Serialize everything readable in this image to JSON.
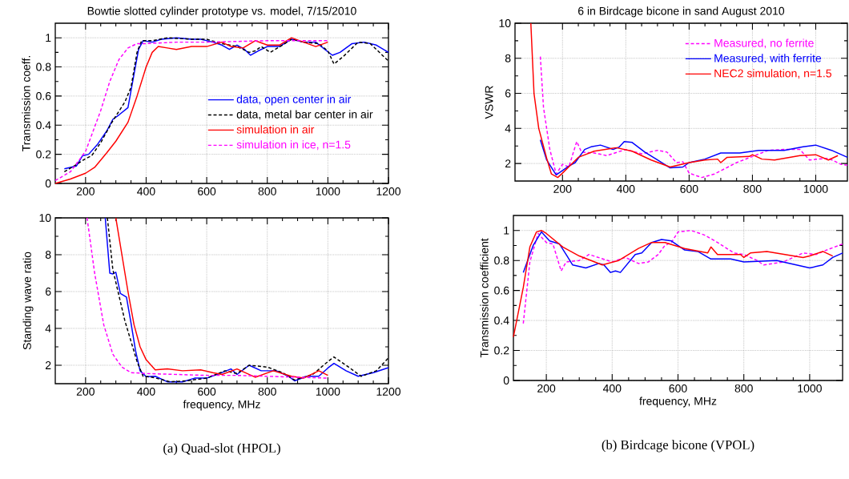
{
  "chart_data": [
    {
      "type": "line",
      "title": "Bowtie slotted cylinder prototype vs. model, 7/15/2010",
      "ylabel": "Transmission coeff.",
      "xlim": [
        100,
        1200
      ],
      "ylim": [
        0,
        1.1
      ],
      "xticks": [
        200,
        400,
        600,
        800,
        1000,
        1200
      ],
      "yticks": [
        0,
        0.2,
        0.4,
        0.6,
        0.8,
        1
      ],
      "grid": true,
      "legend": "right",
      "series": [
        {
          "name": "data, open center in air",
          "color": "#0000ff",
          "line_style": "solid",
          "x": [
            130,
            170,
            190,
            210,
            240,
            270,
            290,
            310,
            340,
            360,
            375,
            390,
            420,
            450,
            500,
            550,
            580,
            620,
            650,
            675,
            700,
            725,
            745,
            770,
            800,
            840,
            880,
            920,
            960,
            990,
            1015,
            1040,
            1080,
            1120,
            1160,
            1200
          ],
          "values": [
            0.1,
            0.12,
            0.19,
            0.2,
            0.27,
            0.36,
            0.44,
            0.47,
            0.52,
            0.75,
            0.92,
            0.98,
            0.97,
            0.99,
            1.0,
            0.99,
            0.99,
            0.97,
            0.95,
            0.92,
            0.95,
            0.92,
            0.88,
            0.91,
            0.94,
            0.94,
            0.99,
            0.97,
            0.97,
            0.92,
            0.88,
            0.9,
            0.96,
            0.97,
            0.95,
            0.9
          ]
        },
        {
          "name": "data, metal bar center in air",
          "color": "#000000",
          "line_style": "dashed",
          "x": [
            130,
            170,
            200,
            220,
            250,
            290,
            330,
            350,
            370,
            385,
            420,
            470,
            550,
            600,
            650,
            700,
            740,
            760,
            780,
            810,
            850,
            880,
            920,
            970,
            1000,
            1020,
            1050,
            1100,
            1140,
            1180,
            1200
          ],
          "values": [
            0.08,
            0.13,
            0.17,
            0.19,
            0.28,
            0.43,
            0.56,
            0.66,
            0.9,
            0.98,
            0.98,
            1.0,
            0.99,
            0.99,
            0.96,
            0.94,
            0.9,
            0.91,
            0.94,
            0.9,
            0.95,
            0.99,
            0.97,
            0.96,
            0.91,
            0.82,
            0.87,
            0.97,
            0.96,
            0.88,
            0.84
          ]
        },
        {
          "name": "simulation in air",
          "color": "#ff0000",
          "line_style": "solid",
          "x": [
            100,
            150,
            200,
            230,
            270,
            300,
            340,
            370,
            400,
            420,
            440,
            470,
            500,
            550,
            600,
            650,
            680,
            720,
            760,
            800,
            840,
            880,
            920,
            960,
            1000
          ],
          "values": [
            0.0,
            0.03,
            0.07,
            0.11,
            0.21,
            0.29,
            0.42,
            0.6,
            0.8,
            0.9,
            0.94,
            0.93,
            0.92,
            0.94,
            0.94,
            0.97,
            0.94,
            0.93,
            0.98,
            0.95,
            0.95,
            1.0,
            0.97,
            0.94,
            0.97
          ]
        },
        {
          "name": "simulation in ice, n=1.5",
          "color": "#ff00ff",
          "line_style": "dashed",
          "x": [
            100,
            150,
            200,
            250,
            280,
            310,
            340,
            370,
            400,
            500,
            600,
            700,
            800,
            900,
            1000
          ],
          "values": [
            0.02,
            0.08,
            0.22,
            0.5,
            0.7,
            0.85,
            0.93,
            0.96,
            0.96,
            0.97,
            0.97,
            0.975,
            0.98,
            0.98,
            0.98
          ]
        }
      ]
    },
    {
      "type": "line",
      "xlabel": "frequency, MHz",
      "ylabel": "Standing wave ratio",
      "xlim": [
        100,
        1200
      ],
      "ylim": [
        1,
        10
      ],
      "xticks": [
        200,
        400,
        600,
        800,
        1000,
        1200
      ],
      "yticks": [
        2,
        4,
        6,
        8,
        10
      ],
      "grid": true,
      "annotations": [
        "(a) Quad-slot (HPOL)"
      ],
      "series": [
        {
          "color": "#0000ff",
          "line_style": "solid",
          "x": [
            265,
            280,
            290,
            300,
            315,
            335,
            350,
            365,
            380,
            400,
            430,
            470,
            520,
            560,
            600,
            650,
            680,
            700,
            740,
            780,
            830,
            870,
            890,
            930,
            970,
            1000,
            1020,
            1060,
            1100,
            1150,
            1200
          ],
          "values": [
            10,
            7.0,
            6.96,
            7.05,
            5.9,
            5.7,
            4.3,
            2.8,
            1.7,
            1.38,
            1.4,
            1.1,
            1.1,
            1.3,
            1.3,
            1.6,
            1.8,
            1.5,
            2.0,
            1.7,
            1.7,
            1.4,
            1.15,
            1.4,
            1.4,
            1.85,
            2.1,
            1.7,
            1.4,
            1.6,
            1.87
          ]
        },
        {
          "color": "#000000",
          "line_style": "dashed",
          "x": [
            272,
            290,
            310,
            330,
            350,
            370,
            390,
            420,
            480,
            530,
            600,
            660,
            700,
            740,
            800,
            850,
            890,
            950,
            1000,
            1020,
            1060,
            1110,
            1160,
            1200
          ],
          "values": [
            10,
            7.2,
            5.8,
            4.4,
            3.3,
            2.2,
            1.4,
            1.35,
            1.1,
            1.15,
            1.3,
            1.7,
            1.55,
            2.0,
            1.9,
            1.6,
            1.2,
            1.5,
            2.2,
            2.45,
            2.0,
            1.4,
            1.7,
            2.4
          ]
        },
        {
          "color": "#ff0000",
          "line_style": "solid",
          "x": [
            300,
            320,
            340,
            360,
            380,
            400,
            430,
            470,
            520,
            580,
            620,
            650,
            700,
            760,
            820,
            880,
            920,
            970,
            1000
          ],
          "values": [
            10,
            8.0,
            6.0,
            4.2,
            3.0,
            2.3,
            1.75,
            1.8,
            1.7,
            1.75,
            1.6,
            1.5,
            1.8,
            1.35,
            1.7,
            1.4,
            1.3,
            1.7,
            1.45
          ]
        },
        {
          "color": "#ff00ff",
          "line_style": "dashed",
          "x": [
            205,
            230,
            260,
            290,
            320,
            350,
            400,
            500,
            600,
            700,
            800,
            900,
            1000
          ],
          "values": [
            10,
            7.0,
            4.2,
            2.6,
            1.9,
            1.6,
            1.55,
            1.5,
            1.45,
            1.45,
            1.4,
            1.35,
            1.3
          ]
        }
      ]
    },
    {
      "type": "line",
      "title": "6 in Birdcage bicone in sand August 2010",
      "ylabel": "VSWR",
      "xlim": [
        50,
        1100
      ],
      "ylim": [
        1,
        10
      ],
      "xticks": [
        200,
        400,
        600,
        800,
        1000
      ],
      "yticks": [
        2,
        4,
        6,
        8,
        10
      ],
      "grid": true,
      "legend": "top right",
      "series": [
        {
          "name": "Measured, no ferrite",
          "color": "#ff00ff",
          "line_style": "dashed",
          "x": [
            130,
            140,
            160,
            180,
            200,
            220,
            245,
            260,
            300,
            340,
            400,
            450,
            500,
            530,
            560,
            580,
            600,
            640,
            680,
            750,
            800,
            850,
            900,
            950,
            980,
            1040,
            1080,
            1100
          ],
          "values": [
            8.1,
            5.2,
            2.8,
            1.4,
            1.95,
            1.8,
            3.25,
            2.65,
            2.6,
            2.45,
            2.8,
            2.55,
            2.75,
            2.65,
            2.05,
            2.1,
            1.45,
            1.2,
            1.4,
            2.05,
            2.4,
            2.75,
            2.8,
            2.8,
            2.2,
            2.3,
            1.95,
            1.9
          ]
        },
        {
          "name": "Measured, with ferrite",
          "color": "#0000ff",
          "line_style": "solid",
          "x": [
            130,
            150,
            180,
            200,
            220,
            240,
            270,
            290,
            320,
            360,
            380,
            395,
            420,
            460,
            500,
            540,
            580,
            600,
            650,
            700,
            760,
            820,
            900,
            960,
            1000,
            1050,
            1100
          ],
          "values": [
            3.35,
            2.2,
            1.35,
            1.6,
            1.85,
            2.05,
            2.8,
            2.95,
            3.05,
            2.8,
            2.95,
            3.25,
            3.2,
            2.65,
            2.2,
            1.75,
            1.8,
            2.05,
            2.25,
            2.6,
            2.6,
            2.75,
            2.75,
            2.95,
            3.05,
            2.75,
            2.35
          ]
        },
        {
          "name": "NEC2 simulation, n=1.5",
          "color": "#ff0000",
          "line_style": "solid",
          "x": [
            100,
            110,
            125,
            150,
            165,
            185,
            200,
            250,
            300,
            370,
            420,
            480,
            540,
            600,
            650,
            690,
            700,
            720,
            790,
            800,
            830,
            870,
            950,
            1000,
            1040,
            1070
          ],
          "values": [
            10,
            6.0,
            4.0,
            2.3,
            1.4,
            1.2,
            1.45,
            2.35,
            2.7,
            2.9,
            2.7,
            2.2,
            1.8,
            2.05,
            2.2,
            2.25,
            2.05,
            2.35,
            2.4,
            2.5,
            2.25,
            2.2,
            2.45,
            2.5,
            2.2,
            2.45
          ]
        }
      ]
    },
    {
      "type": "line",
      "xlabel": "frequency, MHz",
      "ylabel": "Transmission coefficient",
      "xlim": [
        100,
        1100
      ],
      "ylim": [
        0,
        1.1
      ],
      "xticks": [
        200,
        400,
        600,
        800,
        1000
      ],
      "yticks": [
        0,
        0.2,
        0.4,
        0.6,
        0.8,
        1
      ],
      "grid": true,
      "annotations": [
        "(b) Birdcage bicone (VPOL)"
      ],
      "series": [
        {
          "color": "#ff00ff",
          "line_style": "dashed",
          "x": [
            130,
            150,
            175,
            200,
            220,
            245,
            260,
            300,
            330,
            400,
            440,
            480,
            510,
            540,
            560,
            580,
            600,
            640,
            680,
            720,
            770,
            800,
            840,
            860,
            920,
            980,
            1020,
            1040,
            1100
          ],
          "values": [
            0.38,
            0.79,
            0.98,
            0.92,
            0.91,
            0.73,
            0.79,
            0.8,
            0.84,
            0.79,
            0.82,
            0.78,
            0.79,
            0.84,
            0.9,
            0.92,
            0.99,
            1.0,
            0.97,
            0.92,
            0.85,
            0.84,
            0.8,
            0.77,
            0.79,
            0.85,
            0.84,
            0.86,
            0.91
          ]
        },
        {
          "color": "#0000ff",
          "line_style": "solid",
          "x": [
            130,
            160,
            185,
            210,
            240,
            260,
            280,
            320,
            360,
            375,
            395,
            410,
            425,
            470,
            490,
            520,
            550,
            580,
            620,
            660,
            700,
            760,
            800,
            900,
            1000,
            1040,
            1070,
            1100
          ],
          "values": [
            0.72,
            0.9,
            0.99,
            0.93,
            0.91,
            0.84,
            0.77,
            0.75,
            0.78,
            0.77,
            0.72,
            0.73,
            0.72,
            0.84,
            0.85,
            0.92,
            0.94,
            0.93,
            0.87,
            0.86,
            0.81,
            0.81,
            0.79,
            0.8,
            0.75,
            0.77,
            0.82,
            0.85
          ]
        },
        {
          "color": "#ff0000",
          "line_style": "solid",
          "x": [
            100,
            130,
            150,
            170,
            185,
            200,
            250,
            300,
            370,
            420,
            480,
            520,
            560,
            620,
            690,
            700,
            720,
            790,
            800,
            820,
            870,
            980,
            1000,
            1040,
            1070
          ],
          "values": [
            0.29,
            0.62,
            0.89,
            0.99,
            1.0,
            0.98,
            0.89,
            0.83,
            0.77,
            0.8,
            0.88,
            0.92,
            0.92,
            0.88,
            0.85,
            0.89,
            0.84,
            0.84,
            0.82,
            0.85,
            0.86,
            0.82,
            0.83,
            0.86,
            0.83
          ]
        }
      ]
    }
  ]
}
